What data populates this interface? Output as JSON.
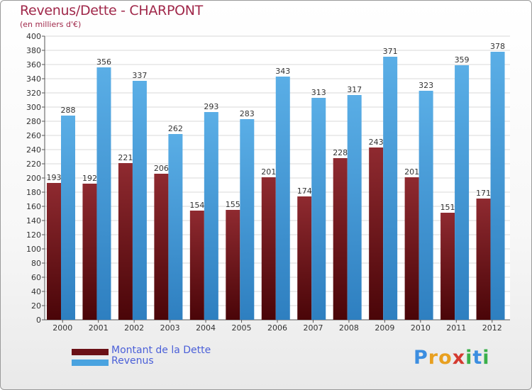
{
  "title": "Revenus/Dette - CHARPONT",
  "subtitle": "(en milliers d'€)",
  "chart_data": {
    "type": "bar",
    "categories": [
      "2000",
      "2001",
      "2002",
      "2003",
      "2004",
      "2005",
      "2006",
      "2007",
      "2008",
      "2009",
      "2010",
      "2011",
      "2012"
    ],
    "series": [
      {
        "name": "Montant de la Dette",
        "values": [
          193,
          192,
          221,
          206,
          154,
          155,
          201,
          174,
          228,
          243,
          201,
          151,
          171
        ],
        "color": "#7a1a1f"
      },
      {
        "name": "Revenus",
        "values": [
          288,
          356,
          337,
          262,
          293,
          283,
          343,
          313,
          317,
          371,
          323,
          359,
          378
        ],
        "color": "#4aa3e0"
      }
    ],
    "ylim": [
      0,
      400
    ],
    "ytick_step": 20,
    "grid": true,
    "legend_position": "bottom-left"
  },
  "legend": {
    "debt_label": "Montant de la Dette",
    "revenue_label": "Revenus",
    "debt_color": "#6a1016",
    "revenue_color": "#4aa3e0"
  },
  "logo": {
    "letters": [
      "P",
      "r",
      "o",
      "x",
      "i",
      "t",
      "i"
    ],
    "colors": [
      "#3c8ee0",
      "#e8a020",
      "#e8a020",
      "#d43a30",
      "#3ab04a",
      "#3c8ee0",
      "#3ab04a"
    ]
  }
}
